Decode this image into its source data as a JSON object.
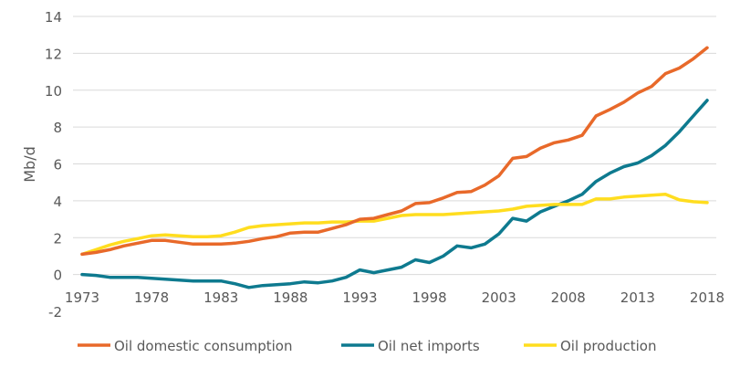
{
  "chart_data": {
    "type": "line",
    "ylabel": "Mb/d",
    "xlabel": "",
    "ylim": [
      -2,
      14
    ],
    "yticks": [
      -2,
      0,
      2,
      4,
      6,
      8,
      10,
      12,
      14
    ],
    "xticks": [
      1973,
      1978,
      1983,
      1988,
      1993,
      1998,
      2003,
      2008,
      2013,
      2018
    ],
    "grid": true,
    "legend": "bottom",
    "x": [
      1973,
      1974,
      1975,
      1976,
      1977,
      1978,
      1979,
      1980,
      1981,
      1982,
      1983,
      1984,
      1985,
      1986,
      1987,
      1988,
      1989,
      1990,
      1991,
      1992,
      1993,
      1994,
      1995,
      1996,
      1997,
      1998,
      1999,
      2000,
      2001,
      2002,
      2003,
      2004,
      2005,
      2006,
      2007,
      2008,
      2009,
      2010,
      2011,
      2012,
      2013,
      2014,
      2015,
      2016,
      2017,
      2018
    ],
    "series": [
      {
        "name": "Oil domestic consumption",
        "color": "#E8692A",
        "values": [
          1.1,
          1.2,
          1.35,
          1.55,
          1.7,
          1.85,
          1.85,
          1.75,
          1.65,
          1.65,
          1.65,
          1.7,
          1.8,
          1.95,
          2.05,
          2.25,
          2.3,
          2.3,
          2.5,
          2.7,
          3.0,
          3.05,
          3.25,
          3.45,
          3.85,
          3.9,
          4.15,
          4.45,
          4.5,
          4.85,
          5.35,
          6.3,
          6.4,
          6.85,
          7.15,
          7.3,
          7.55,
          8.6,
          8.95,
          9.35,
          9.85,
          10.2,
          10.9,
          11.2,
          11.7,
          12.3
        ]
      },
      {
        "name": "Oil net imports",
        "color": "#0E7A8F",
        "values": [
          0,
          -0.05,
          -0.15,
          -0.15,
          -0.15,
          -0.2,
          -0.25,
          -0.3,
          -0.35,
          -0.35,
          -0.35,
          -0.5,
          -0.7,
          -0.6,
          -0.55,
          -0.5,
          -0.4,
          -0.45,
          -0.35,
          -0.15,
          0.25,
          0.1,
          0.25,
          0.4,
          0.8,
          0.65,
          1.0,
          1.55,
          1.45,
          1.65,
          2.2,
          3.05,
          2.9,
          3.4,
          3.7,
          4.0,
          4.35,
          5.05,
          5.5,
          5.85,
          6.05,
          6.45,
          7.0,
          7.75,
          8.6,
          9.45
        ]
      },
      {
        "name": "Oil production",
        "color": "#FFDD1F",
        "values": [
          1.1,
          1.35,
          1.6,
          1.8,
          1.95,
          2.1,
          2.15,
          2.1,
          2.05,
          2.05,
          2.1,
          2.3,
          2.55,
          2.65,
          2.7,
          2.75,
          2.8,
          2.8,
          2.85,
          2.85,
          2.9,
          2.9,
          3.05,
          3.2,
          3.25,
          3.25,
          3.25,
          3.3,
          3.35,
          3.4,
          3.45,
          3.55,
          3.7,
          3.75,
          3.8,
          3.8,
          3.8,
          4.1,
          4.1,
          4.2,
          4.25,
          4.3,
          4.35,
          4.05,
          3.95,
          3.9
        ]
      }
    ]
  }
}
